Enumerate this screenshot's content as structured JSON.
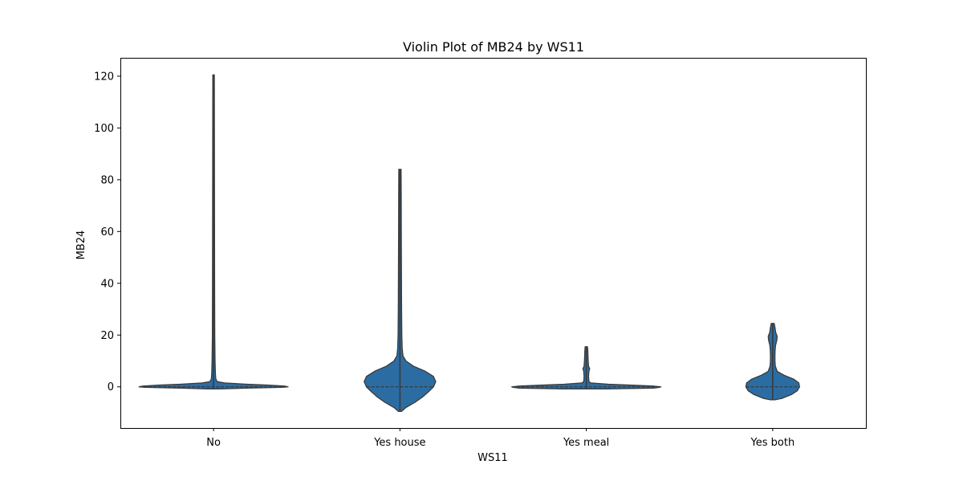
{
  "chart_data": {
    "type": "violin",
    "title": "Violin Plot of MB24 by WS11",
    "xlabel": "WS11",
    "ylabel": "MB24",
    "categories": [
      "No",
      "Yes house",
      "Yes meal",
      "Yes both"
    ],
    "ylim": [
      -15.9,
      127.1
    ],
    "yticks": [
      0,
      20,
      40,
      60,
      80,
      100,
      120
    ],
    "grid": false,
    "color": "#2b6da3",
    "edge_color": "#3a3a3a",
    "violins": [
      {
        "category": "No",
        "min": -0.8,
        "max": 120.5,
        "median": 0,
        "profile": [
          [
            -0.8,
            0.08
          ],
          [
            -0.5,
            0.44
          ],
          [
            -0.2,
            0.92
          ],
          [
            0,
            1.0
          ],
          [
            0.3,
            0.95
          ],
          [
            0.7,
            0.72
          ],
          [
            1.0,
            0.45
          ],
          [
            1.5,
            0.15
          ],
          [
            2.0,
            0.05
          ],
          [
            3.0,
            0.03
          ],
          [
            5.0,
            0.025
          ],
          [
            10,
            0.02
          ],
          [
            20,
            0.016
          ],
          [
            40,
            0.014
          ],
          [
            60,
            0.013
          ],
          [
            80,
            0.012
          ],
          [
            100,
            0.011
          ],
          [
            120.5,
            0.01
          ]
        ]
      },
      {
        "category": "Yes house",
        "min": -9.5,
        "max": 84,
        "median": 0,
        "profile": [
          [
            -9.5,
            0.02
          ],
          [
            -8,
            0.08
          ],
          [
            -6,
            0.2
          ],
          [
            -4,
            0.3
          ],
          [
            -2,
            0.38
          ],
          [
            0,
            0.45
          ],
          [
            2,
            0.48
          ],
          [
            4,
            0.45
          ],
          [
            6,
            0.34
          ],
          [
            8,
            0.18
          ],
          [
            10,
            0.08
          ],
          [
            12,
            0.04
          ],
          [
            15,
            0.03
          ],
          [
            20,
            0.025
          ],
          [
            30,
            0.022
          ],
          [
            45,
            0.02
          ],
          [
            60,
            0.018
          ],
          [
            75,
            0.017
          ],
          [
            84,
            0.015
          ]
        ]
      },
      {
        "category": "Yes meal",
        "min": -0.8,
        "max": 15.5,
        "median": 0,
        "profile": [
          [
            -0.8,
            0.3
          ],
          [
            -0.5,
            0.9
          ],
          [
            -0.2,
            0.98
          ],
          [
            0,
            1.0
          ],
          [
            0.3,
            0.9
          ],
          [
            0.6,
            0.65
          ],
          [
            1.0,
            0.3
          ],
          [
            1.5,
            0.06
          ],
          [
            2.0,
            0.035
          ],
          [
            4.0,
            0.03
          ],
          [
            6.0,
            0.035
          ],
          [
            7.0,
            0.045
          ],
          [
            8.0,
            0.03
          ],
          [
            10,
            0.025
          ],
          [
            12,
            0.022
          ],
          [
            14,
            0.02
          ],
          [
            15.5,
            0.015
          ]
        ]
      },
      {
        "category": "Yes both",
        "min": -5,
        "max": 24.5,
        "median": 0,
        "profile": [
          [
            -5,
            0.03
          ],
          [
            -4.5,
            0.12
          ],
          [
            -3,
            0.25
          ],
          [
            -1.5,
            0.33
          ],
          [
            0,
            0.36
          ],
          [
            1.5,
            0.35
          ],
          [
            3,
            0.28
          ],
          [
            4.5,
            0.15
          ],
          [
            6,
            0.06
          ],
          [
            8,
            0.035
          ],
          [
            10,
            0.03
          ],
          [
            12,
            0.03
          ],
          [
            14,
            0.032
          ],
          [
            16,
            0.038
          ],
          [
            18,
            0.055
          ],
          [
            19.5,
            0.06
          ],
          [
            21,
            0.04
          ],
          [
            23,
            0.03
          ],
          [
            24.5,
            0.02
          ]
        ]
      }
    ]
  }
}
